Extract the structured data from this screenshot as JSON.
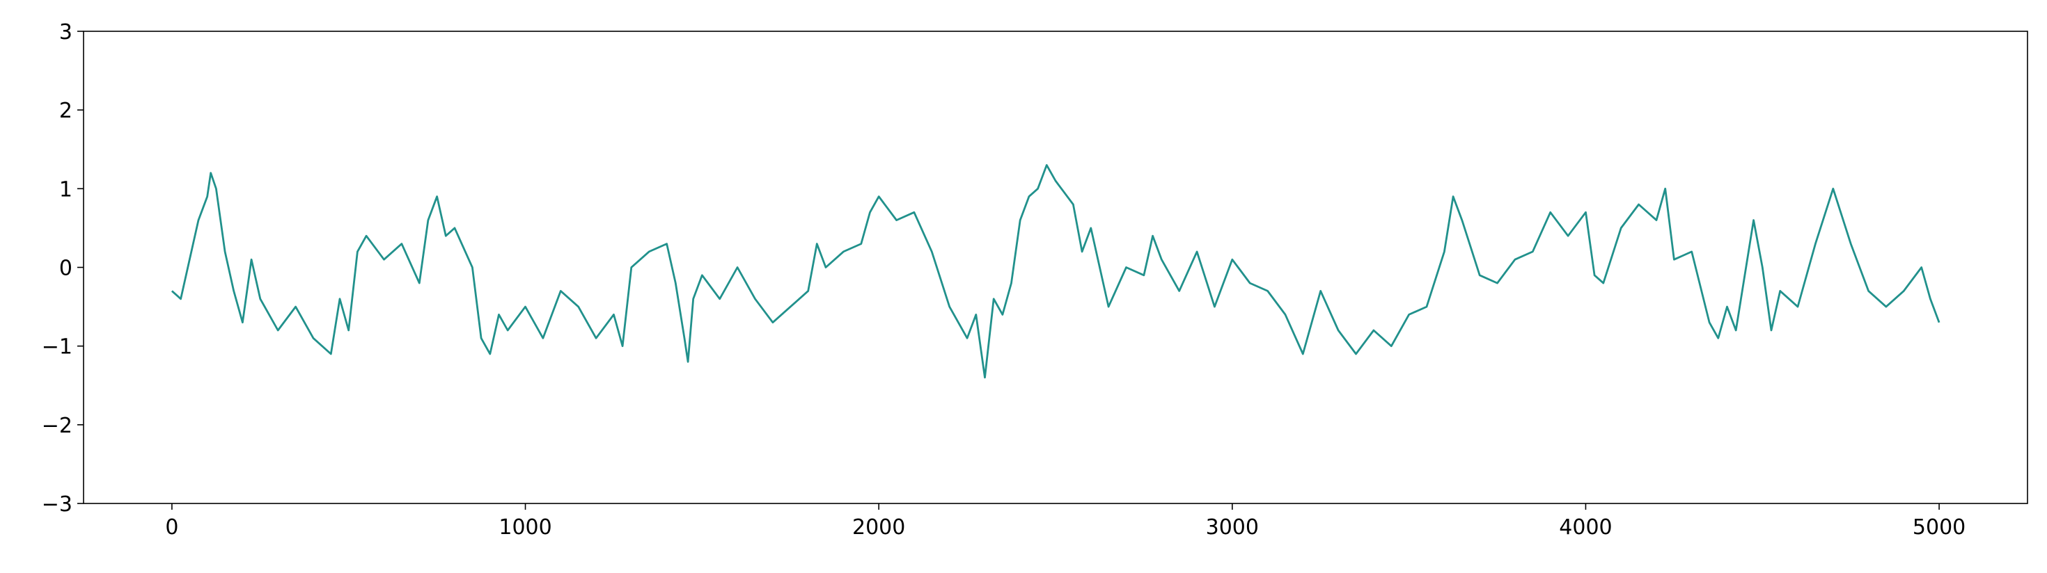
{
  "chart_data": {
    "type": "line",
    "color": "#21918c",
    "x": [
      0,
      25,
      50,
      75,
      100,
      110,
      125,
      150,
      175,
      200,
      225,
      250,
      300,
      350,
      400,
      450,
      475,
      500,
      525,
      550,
      600,
      650,
      700,
      725,
      750,
      775,
      800,
      850,
      875,
      900,
      925,
      950,
      1000,
      1050,
      1100,
      1150,
      1200,
      1250,
      1275,
      1300,
      1350,
      1400,
      1425,
      1450,
      1460,
      1475,
      1500,
      1550,
      1600,
      1650,
      1700,
      1750,
      1800,
      1825,
      1850,
      1900,
      1950,
      1975,
      2000,
      2050,
      2100,
      2150,
      2200,
      2250,
      2275,
      2300,
      2325,
      2350,
      2375,
      2400,
      2425,
      2450,
      2475,
      2500,
      2550,
      2575,
      2600,
      2650,
      2700,
      2750,
      2775,
      2800,
      2850,
      2900,
      2950,
      3000,
      3050,
      3100,
      3150,
      3200,
      3250,
      3300,
      3350,
      3400,
      3450,
      3500,
      3550,
      3600,
      3625,
      3650,
      3700,
      3750,
      3800,
      3850,
      3900,
      3950,
      4000,
      4025,
      4050,
      4100,
      4150,
      4200,
      4225,
      4250,
      4300,
      4350,
      4375,
      4400,
      4425,
      4475,
      4500,
      4525,
      4550,
      4600,
      4650,
      4700,
      4750,
      4800,
      4850,
      4900,
      4950,
      4975,
      5000
    ],
    "values": [
      -0.3,
      -0.4,
      0.1,
      0.6,
      0.9,
      1.2,
      1.0,
      0.2,
      -0.3,
      -0.7,
      0.1,
      -0.4,
      -0.8,
      -0.5,
      -0.9,
      -1.1,
      -0.4,
      -0.8,
      0.2,
      0.4,
      0.1,
      0.3,
      -0.2,
      0.6,
      0.9,
      0.4,
      0.5,
      0.0,
      -0.9,
      -1.1,
      -0.6,
      -0.8,
      -0.5,
      -0.9,
      -0.3,
      -0.5,
      -0.9,
      -0.6,
      -1.0,
      0.0,
      0.2,
      0.3,
      -0.2,
      -0.9,
      -1.2,
      -0.4,
      -0.1,
      -0.4,
      0.0,
      -0.4,
      -0.7,
      -0.5,
      -0.3,
      0.3,
      0.0,
      0.2,
      0.3,
      0.7,
      0.9,
      0.6,
      0.7,
      0.2,
      -0.5,
      -0.9,
      -0.6,
      -1.4,
      -0.4,
      -0.6,
      -0.2,
      0.6,
      0.9,
      1.0,
      1.3,
      1.1,
      0.8,
      0.2,
      0.5,
      -0.5,
      0.0,
      -0.1,
      0.4,
      0.1,
      -0.3,
      0.2,
      -0.5,
      0.1,
      -0.2,
      -0.3,
      -0.6,
      -1.1,
      -0.3,
      -0.8,
      -1.1,
      -0.8,
      -1.0,
      -0.6,
      -0.5,
      0.2,
      0.9,
      0.6,
      -0.1,
      -0.2,
      0.1,
      0.2,
      0.7,
      0.4,
      0.7,
      -0.1,
      -0.2,
      0.5,
      0.8,
      0.6,
      1.0,
      0.1,
      0.2,
      -0.7,
      -0.9,
      -0.5,
      -0.8,
      0.6,
      0.0,
      -0.8,
      -0.3,
      -0.5,
      0.3,
      1.0,
      0.3,
      -0.3,
      -0.5,
      -0.3,
      0.0,
      -0.4,
      -0.7
    ],
    "xlim": [
      -250,
      5250
    ],
    "ylim": [
      -3,
      3
    ],
    "xticks": [
      0,
      1000,
      2000,
      3000,
      4000,
      5000
    ],
    "yticks": [
      {
        "value": -3,
        "label": "−3"
      },
      {
        "value": -2,
        "label": "−2"
      },
      {
        "value": -1,
        "label": "−1"
      },
      0,
      1,
      2,
      3
    ]
  }
}
